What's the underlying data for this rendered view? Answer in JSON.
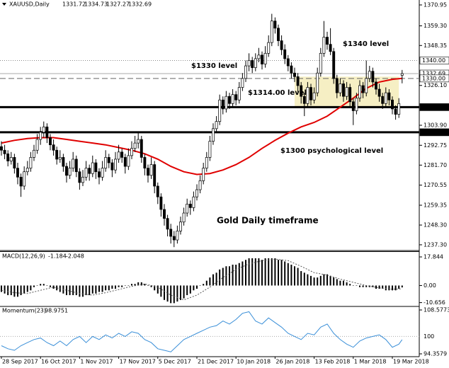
{
  "chart_data": {
    "type": "candlestick",
    "symbol": "XAUUSD,Daily",
    "title": "Gold Daily timeframe",
    "candles": [
      [
        1292,
        1295,
        1287,
        1290
      ],
      [
        1290,
        1293,
        1285,
        1288
      ],
      [
        1288,
        1290,
        1281,
        1284
      ],
      [
        1284,
        1289,
        1282,
        1286
      ],
      [
        1286,
        1288,
        1277,
        1280
      ],
      [
        1280,
        1283,
        1271,
        1275
      ],
      [
        1275,
        1277,
        1264,
        1270
      ],
      [
        1270,
        1281,
        1268,
        1278
      ],
      [
        1278,
        1284,
        1276,
        1280
      ],
      [
        1280,
        1289,
        1278,
        1286
      ],
      [
        1286,
        1293,
        1284,
        1290
      ],
      [
        1290,
        1299,
        1288,
        1296
      ],
      [
        1296,
        1303,
        1293,
        1300
      ],
      [
        1300,
        1306,
        1297,
        1303
      ],
      [
        1303,
        1305,
        1294,
        1297
      ],
      [
        1297,
        1299,
        1290,
        1293
      ],
      [
        1293,
        1296,
        1287,
        1290
      ],
      [
        1290,
        1292,
        1282,
        1285
      ],
      [
        1285,
        1290,
        1283,
        1286
      ],
      [
        1286,
        1288,
        1278,
        1281
      ],
      [
        1281,
        1283,
        1272,
        1276
      ],
      [
        1276,
        1284,
        1274,
        1280
      ],
      [
        1280,
        1289,
        1278,
        1285
      ],
      [
        1285,
        1287,
        1275,
        1278
      ],
      [
        1278,
        1280,
        1268,
        1272
      ],
      [
        1272,
        1279,
        1270,
        1275
      ],
      [
        1275,
        1284,
        1273,
        1280
      ],
      [
        1280,
        1282,
        1273,
        1277
      ],
      [
        1277,
        1287,
        1275,
        1283
      ],
      [
        1283,
        1285,
        1274,
        1278
      ],
      [
        1278,
        1280,
        1271,
        1275
      ],
      [
        1275,
        1284,
        1273,
        1280
      ],
      [
        1280,
        1290,
        1278,
        1286
      ],
      [
        1286,
        1288,
        1280,
        1283
      ],
      [
        1283,
        1285,
        1275,
        1279
      ],
      [
        1279,
        1289,
        1277,
        1285
      ],
      [
        1285,
        1293,
        1283,
        1289
      ],
      [
        1289,
        1291,
        1283,
        1286
      ],
      [
        1286,
        1288,
        1277,
        1281
      ],
      [
        1281,
        1291,
        1279,
        1287
      ],
      [
        1287,
        1295,
        1285,
        1291
      ],
      [
        1291,
        1298,
        1289,
        1294
      ],
      [
        1294,
        1300,
        1291,
        1296
      ],
      [
        1296,
        1298,
        1283,
        1286
      ],
      [
        1286,
        1288,
        1276,
        1280
      ],
      [
        1280,
        1282,
        1272,
        1276
      ],
      [
        1276,
        1286,
        1274,
        1282
      ],
      [
        1282,
        1284,
        1266,
        1270
      ],
      [
        1270,
        1272,
        1260,
        1264
      ],
      [
        1264,
        1266,
        1253,
        1257
      ],
      [
        1257,
        1260,
        1248,
        1252
      ],
      [
        1252,
        1254,
        1242,
        1246
      ],
      [
        1246,
        1249,
        1238,
        1242
      ],
      [
        1242,
        1245,
        1236,
        1240
      ],
      [
        1240,
        1248,
        1238,
        1245
      ],
      [
        1245,
        1253,
        1243,
        1250
      ],
      [
        1250,
        1258,
        1248,
        1255
      ],
      [
        1255,
        1263,
        1253,
        1260
      ],
      [
        1260,
        1262,
        1254,
        1258
      ],
      [
        1258,
        1267,
        1256,
        1264
      ],
      [
        1264,
        1271,
        1262,
        1268
      ],
      [
        1268,
        1276,
        1266,
        1273
      ],
      [
        1273,
        1283,
        1271,
        1280
      ],
      [
        1280,
        1289,
        1278,
        1286
      ],
      [
        1286,
        1298,
        1284,
        1295
      ],
      [
        1295,
        1305,
        1293,
        1302
      ],
      [
        1302,
        1309,
        1300,
        1306
      ],
      [
        1306,
        1321,
        1304,
        1318
      ],
      [
        1318,
        1320,
        1310,
        1313
      ],
      [
        1313,
        1323,
        1311,
        1320
      ],
      [
        1320,
        1322,
        1313,
        1316
      ],
      [
        1316,
        1324,
        1314,
        1321
      ],
      [
        1321,
        1323,
        1315,
        1318
      ],
      [
        1318,
        1328,
        1316,
        1325
      ],
      [
        1325,
        1333,
        1323,
        1330
      ],
      [
        1330,
        1340,
        1328,
        1337
      ],
      [
        1337,
        1344,
        1334,
        1340
      ],
      [
        1340,
        1342,
        1333,
        1336
      ],
      [
        1336,
        1344,
        1334,
        1341
      ],
      [
        1341,
        1347,
        1339,
        1343
      ],
      [
        1343,
        1345,
        1335,
        1338
      ],
      [
        1338,
        1348,
        1336,
        1344
      ],
      [
        1344,
        1354,
        1342,
        1350
      ],
      [
        1350,
        1366,
        1348,
        1362
      ],
      [
        1362,
        1364,
        1355,
        1358
      ],
      [
        1358,
        1360,
        1348,
        1351
      ],
      [
        1351,
        1354,
        1343,
        1346
      ],
      [
        1346,
        1349,
        1338,
        1341
      ],
      [
        1341,
        1343,
        1334,
        1337
      ],
      [
        1337,
        1339,
        1330,
        1333
      ],
      [
        1333,
        1336,
        1328,
        1331
      ],
      [
        1331,
        1333,
        1322,
        1326
      ],
      [
        1326,
        1328,
        1316,
        1320
      ],
      [
        1320,
        1322,
        1309,
        1316
      ],
      [
        1316,
        1328,
        1314,
        1325
      ],
      [
        1325,
        1327,
        1315,
        1318
      ],
      [
        1318,
        1325,
        1316,
        1322
      ],
      [
        1322,
        1336,
        1320,
        1333
      ],
      [
        1333,
        1347,
        1331,
        1344
      ],
      [
        1344,
        1362,
        1342,
        1353
      ],
      [
        1353,
        1356,
        1346,
        1349
      ],
      [
        1349,
        1358,
        1343,
        1345
      ],
      [
        1345,
        1347,
        1327,
        1330
      ],
      [
        1330,
        1332,
        1319,
        1322
      ],
      [
        1322,
        1330,
        1320,
        1327
      ],
      [
        1327,
        1329,
        1317,
        1320
      ],
      [
        1320,
        1328,
        1318,
        1325
      ],
      [
        1325,
        1327,
        1314,
        1317
      ],
      [
        1317,
        1319,
        1304,
        1312
      ],
      [
        1312,
        1322,
        1310,
        1319
      ],
      [
        1319,
        1329,
        1317,
        1326
      ],
      [
        1326,
        1328,
        1319,
        1322
      ],
      [
        1322,
        1340,
        1320,
        1330
      ],
      [
        1330,
        1337,
        1328,
        1334
      ],
      [
        1334,
        1336,
        1325,
        1328
      ],
      [
        1328,
        1330,
        1321,
        1324
      ],
      [
        1324,
        1327,
        1317,
        1320
      ],
      [
        1320,
        1322,
        1313,
        1316
      ],
      [
        1316,
        1325,
        1314,
        1322
      ],
      [
        1322,
        1324,
        1315,
        1318
      ],
      [
        1318,
        1320,
        1310,
        1313
      ],
      [
        1313,
        1315,
        1307,
        1310
      ],
      [
        1310,
        1319,
        1308,
        1316
      ],
      [
        1331.72,
        1334.73,
        1327.27,
        1332.69
      ]
    ],
    "xlim": [
      -0.43,
      128.26
    ],
    "xticks": [
      {
        "value": 0,
        "label": "28 Sep 2017"
      },
      {
        "value": 12,
        "label": "16 Oct 2017"
      },
      {
        "value": 24,
        "label": "1 Nov 2017"
      },
      {
        "value": 36,
        "label": "17 Nov 2017"
      },
      {
        "value": 48,
        "label": "5 Dec 2017"
      },
      {
        "value": 60,
        "label": "21 Dec 2017"
      },
      {
        "value": 72,
        "label": "10 Jan 2018"
      },
      {
        "value": 84,
        "label": "26 Jan 2018"
      },
      {
        "value": 96,
        "label": "13 Feb 2018"
      },
      {
        "value": 108,
        "label": "1 Mar 2018"
      },
      {
        "value": 120,
        "label": "19 Mar 2018"
      }
    ],
    "ylim": [
      1234.9,
      1373.7
    ],
    "yticks": [
      1370.95,
      {
        "value": 1359.3,
        "label": "1359.30"
      },
      1348.35,
      {
        "value": 1326.1,
        "label": "1326.10"
      },
      {
        "value": 1303.9,
        "label": "1303.90"
      },
      1292.75,
      {
        "value": 1281.7,
        "label": "1281.70"
      },
      1270.55,
      1259.35,
      {
        "value": 1248.3,
        "label": "1248.30"
      },
      {
        "value": 1237.3,
        "label": "1237.30"
      }
    ],
    "bull_color": "#ffffff",
    "bear_color": "#000000",
    "ma": {
      "color": "#e00000",
      "x": [
        0,
        4,
        8,
        12,
        16,
        20,
        24,
        28,
        32,
        36,
        40,
        44,
        48,
        52,
        56,
        60,
        64,
        68,
        72,
        76,
        80,
        84,
        88,
        92,
        96,
        100,
        104,
        108,
        112,
        116,
        120,
        123
      ],
      "values": [
        1294,
        1295.5,
        1296.5,
        1297,
        1297,
        1296,
        1295,
        1294,
        1293,
        1291.5,
        1290,
        1288,
        1285,
        1281,
        1278,
        1276.5,
        1277,
        1279,
        1282,
        1286,
        1291,
        1295.5,
        1299.5,
        1303,
        1305.5,
        1309,
        1314,
        1319,
        1324.5,
        1328,
        1329.5,
        1330
      ]
    },
    "levels": [
      {
        "value": 1340,
        "label": "1340.00",
        "style": "dotted"
      },
      {
        "value": 1332.69,
        "label": "1332.69",
        "style": "solid"
      },
      {
        "value": 1330,
        "label": "1330.00",
        "style": "dashed"
      },
      {
        "value": 1314,
        "label": "1314.00",
        "style": "thick"
      },
      {
        "value": 1300,
        "label": "1300.00",
        "style": "thick"
      }
    ],
    "zone": {
      "x": [
        90,
        122
      ],
      "y": [
        1314,
        1331
      ],
      "color": "#f6efc4"
    },
    "annotations": [
      {
        "text": "$1340 level"
      },
      {
        "text": "$1330 level"
      },
      {
        "text": "$1314.00 level"
      },
      {
        "text": "$1300 psychological level"
      }
    ],
    "macd": {
      "label": "MACD(12,26,9)",
      "color": "#000000",
      "hist": [
        -4,
        -5,
        -6,
        -6,
        -7,
        -7,
        -6,
        -5,
        -4,
        -3,
        -1,
        0,
        1,
        1,
        0,
        -1,
        -2,
        -3,
        -4,
        -5,
        -6,
        -6,
        -6,
        -6,
        -7,
        -7,
        -6,
        -6,
        -5,
        -5,
        -4,
        -4,
        -3,
        -3,
        -2,
        -2,
        -1,
        -1,
        0,
        0,
        1,
        1,
        2,
        2,
        1,
        0,
        -1,
        -3,
        -5,
        -7,
        -9,
        -10,
        -11,
        -11,
        -10,
        -9,
        -8,
        -6,
        -5,
        -3,
        -2,
        0,
        1,
        3,
        5,
        7,
        8,
        10,
        11,
        12,
        12,
        13,
        13,
        14,
        15,
        16,
        17,
        17,
        17,
        17,
        16,
        17,
        17,
        17,
        17,
        16,
        16,
        15,
        14,
        13,
        12,
        11,
        9,
        8,
        7,
        6,
        5,
        5,
        6,
        7,
        7,
        6,
        5,
        4,
        3,
        3,
        2,
        1,
        0,
        0,
        -1,
        -1,
        -1,
        -1,
        -1,
        -2,
        -2,
        -2,
        -3,
        -3,
        -3,
        -3,
        -2,
        -1.184
      ],
      "signal": {
        "x": [
          0,
          4,
          8,
          12,
          16,
          20,
          24,
          28,
          32,
          36,
          40,
          44,
          48,
          52,
          56,
          60,
          64,
          68,
          72,
          76,
          80,
          84,
          88,
          92,
          96,
          100,
          104,
          108,
          112,
          116,
          120,
          123
        ],
        "values": [
          -3,
          -4.5,
          -5,
          -3,
          -1,
          -3,
          -5,
          -6,
          -4.5,
          -2.5,
          -0.5,
          1,
          -1,
          -6,
          -9,
          -6,
          -1,
          5,
          10,
          13.5,
          15.5,
          16.5,
          15.5,
          12,
          8,
          6.5,
          4,
          2,
          0,
          -1.5,
          -2.3,
          -2.048
        ]
      },
      "ylim": [
        -12.6,
        20.5
      ],
      "yticks": [
        17.844,
        {
          "value": 0,
          "label": "0.00"
        },
        -10.656
      ]
    },
    "momentum": {
      "label": "Momentum(23)",
      "color": "#3a8fd8",
      "x": [
        0,
        2,
        4,
        6,
        8,
        10,
        12,
        14,
        16,
        18,
        20,
        22,
        24,
        26,
        28,
        30,
        32,
        34,
        36,
        38,
        40,
        42,
        44,
        46,
        48,
        50,
        52,
        54,
        56,
        58,
        60,
        62,
        64,
        66,
        68,
        70,
        72,
        74,
        76,
        78,
        80,
        82,
        84,
        86,
        88,
        90,
        92,
        94,
        96,
        98,
        100,
        102,
        104,
        106,
        108,
        110,
        112,
        114,
        116,
        118,
        120,
        122,
        123
      ],
      "values": [
        97,
        96,
        95.5,
        97,
        98,
        99,
        99.5,
        98,
        97,
        98.5,
        97,
        99,
        100,
        98,
        100,
        99,
        100.5,
        99.5,
        101,
        100,
        101.5,
        101,
        99,
        98,
        96,
        95.5,
        95,
        97,
        99,
        100,
        101,
        102,
        103,
        103.5,
        105,
        104,
        105.5,
        107.5,
        108,
        105,
        104,
        106,
        104.5,
        103,
        101,
        100,
        99,
        101,
        100.5,
        103,
        104,
        101,
        99,
        97.5,
        96.5,
        98.5,
        99.5,
        100,
        100.5,
        99,
        96.5,
        97.5,
        98.9751
      ],
      "ylim": [
        93.67,
        109.49
      ],
      "yticks": [
        108.5773,
        100,
        94.3579
      ]
    }
  }
}
